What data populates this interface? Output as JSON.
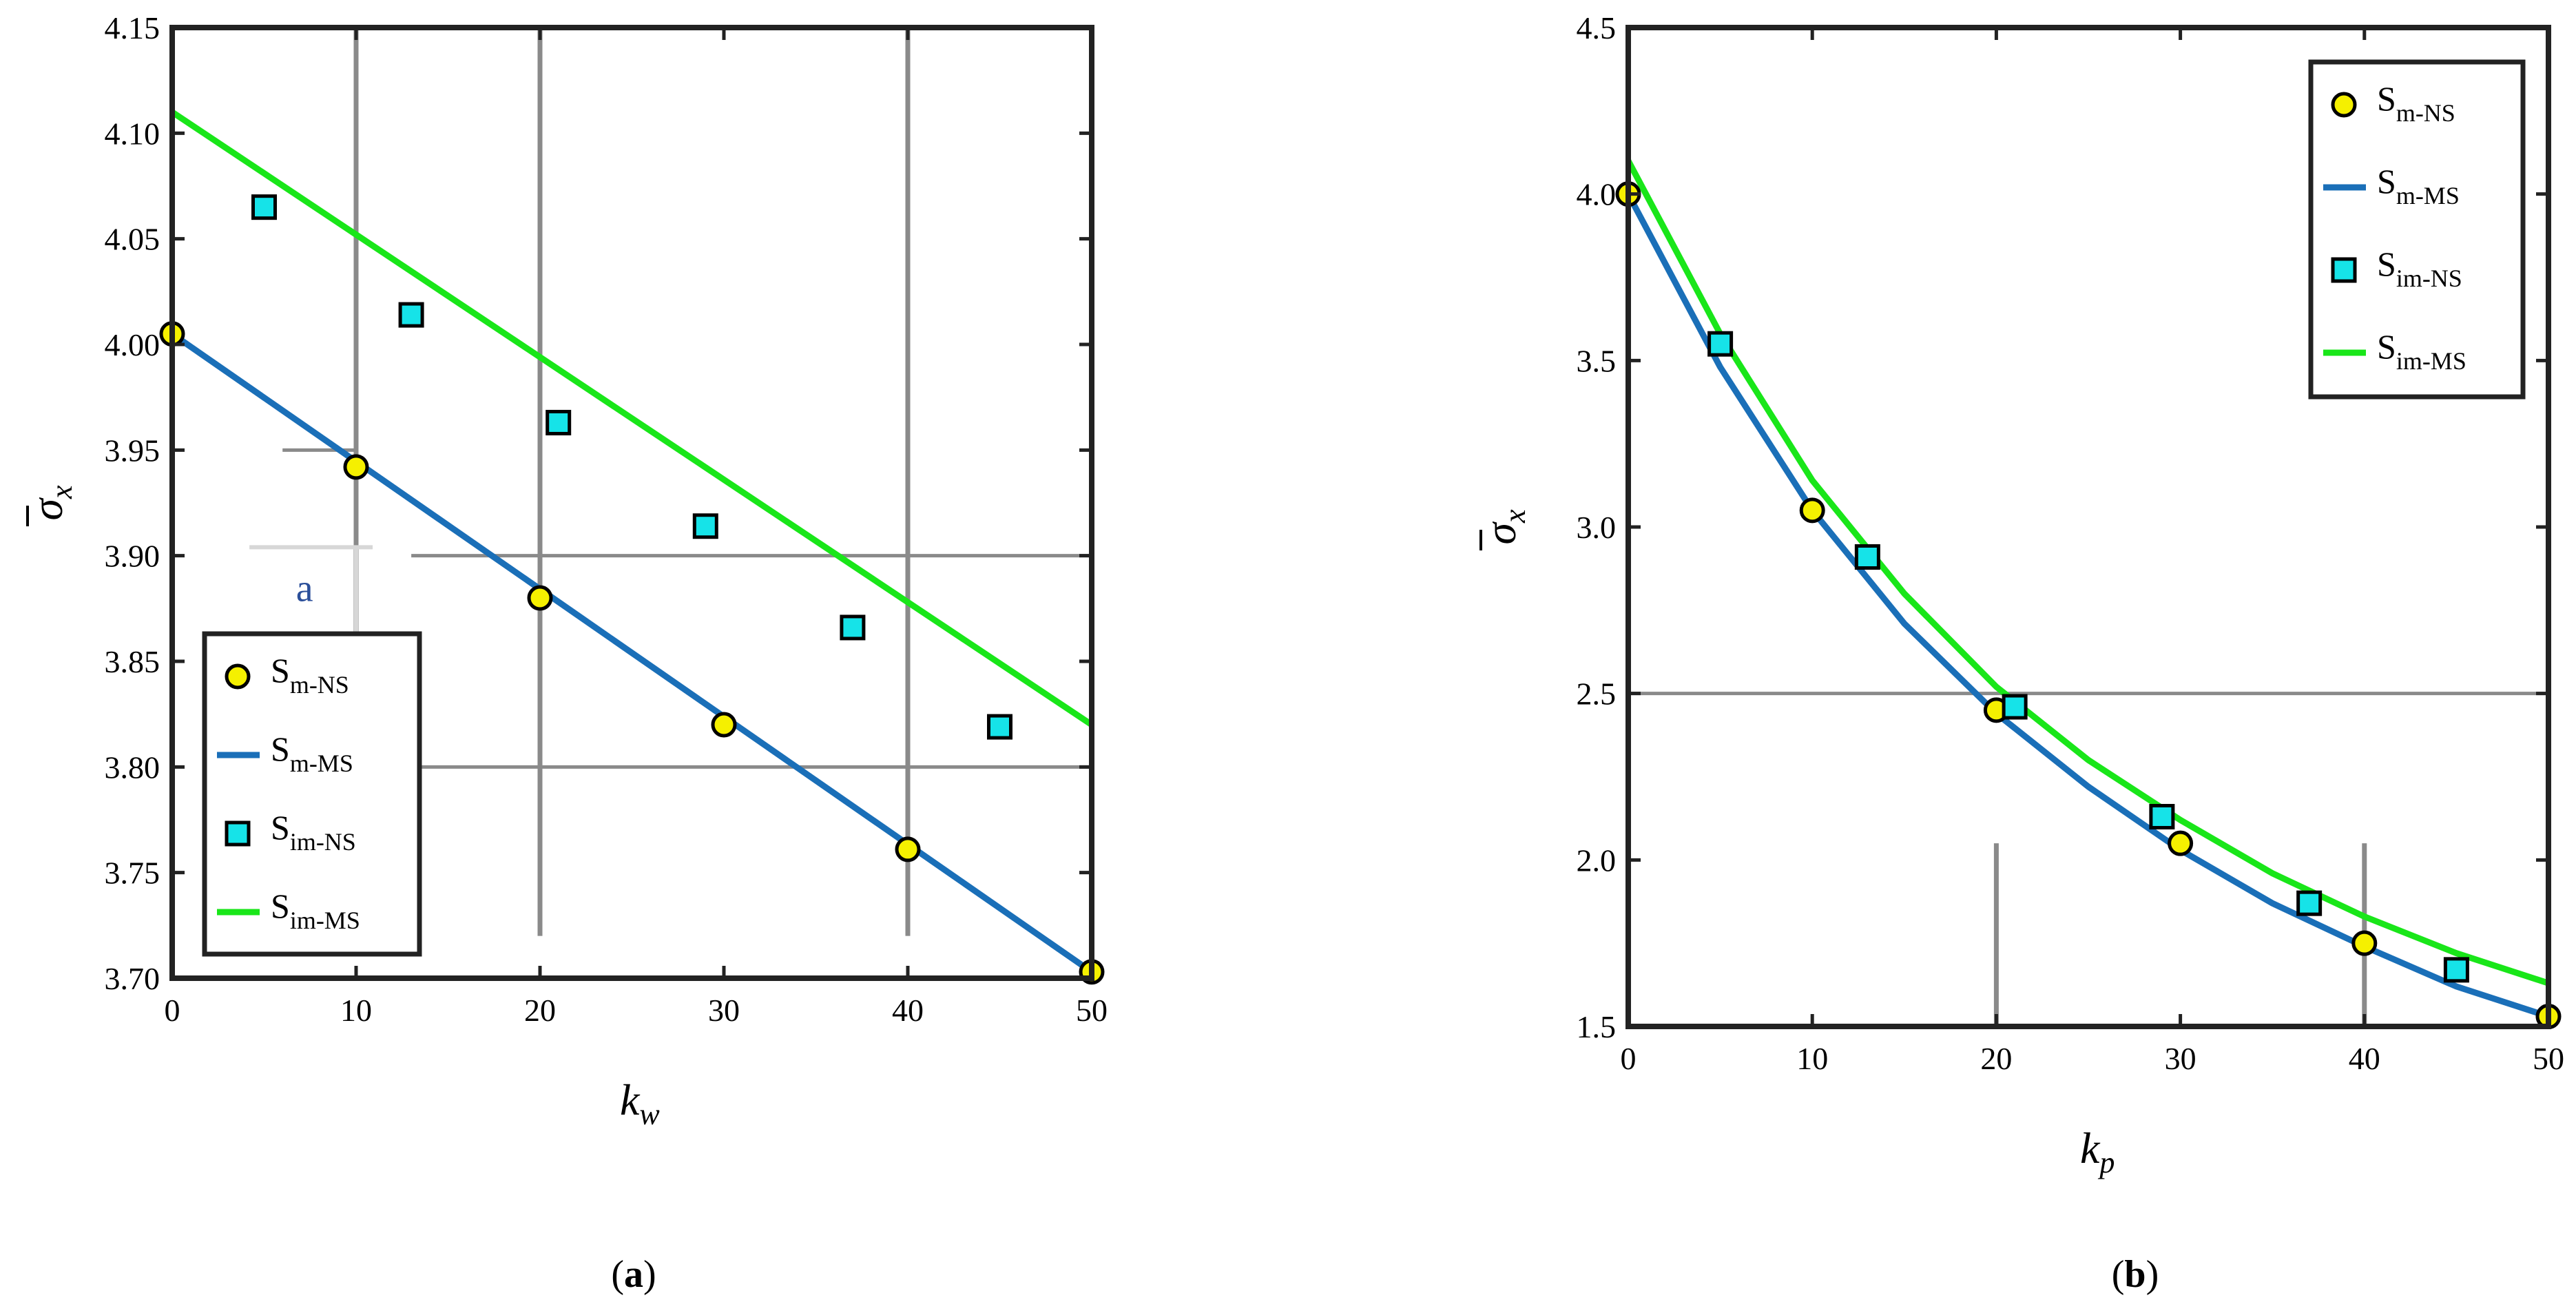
{
  "chart_data": [
    {
      "type": "line",
      "panel_label": "a",
      "xlabel": {
        "var": "k",
        "sub": "w"
      },
      "ylabel": {
        "var": "σ",
        "sub": "x"
      },
      "xlim": [
        0,
        50
      ],
      "ylim": [
        3.7,
        4.15
      ],
      "xticks": [
        0,
        10,
        20,
        30,
        40,
        50
      ],
      "xtick_labels": [
        "0",
        "10",
        "20",
        "30",
        "40",
        "50"
      ],
      "yticks": [
        3.7,
        3.75,
        3.8,
        3.85,
        3.9,
        3.95,
        4.0,
        4.05,
        4.1,
        4.15
      ],
      "ytick_labels": [
        "3.70",
        "3.75",
        "3.80",
        "3.85",
        "3.90",
        "3.95",
        "4.00",
        "4.05",
        "4.10",
        "4.15"
      ],
      "legend_position": "bottom-left",
      "annotation": "a",
      "series": [
        {
          "base": "S",
          "sub": "m-NS",
          "marker": "circle",
          "color": "#f5f000",
          "x": [
            0,
            10,
            20,
            30,
            40,
            50
          ],
          "y": [
            4.005,
            3.942,
            3.88,
            3.82,
            3.761,
            3.703
          ]
        },
        {
          "base": "S",
          "sub": "m-MS",
          "marker": "line",
          "color": "#1a6fb8",
          "x": [
            0,
            50
          ],
          "y": [
            4.005,
            3.703
          ]
        },
        {
          "base": "S",
          "sub": "im-NS",
          "marker": "square",
          "color": "#16e3e8",
          "x": [
            5,
            13,
            21,
            29,
            37,
            45
          ],
          "y": [
            4.065,
            4.014,
            3.963,
            3.914,
            3.866,
            3.819
          ]
        },
        {
          "base": "S",
          "sub": "im-MS",
          "marker": "line",
          "color": "#19e619",
          "x": [
            0,
            50
          ],
          "y": [
            4.11,
            3.82
          ]
        }
      ]
    },
    {
      "type": "line",
      "panel_label": "b",
      "xlabel": {
        "var": "k",
        "sub": "p"
      },
      "ylabel": {
        "var": "σ",
        "sub": "x"
      },
      "xlim": [
        0,
        50
      ],
      "ylim": [
        1.5,
        4.5
      ],
      "xticks": [
        0,
        10,
        20,
        30,
        40,
        50
      ],
      "xtick_labels": [
        "0",
        "10",
        "20",
        "30",
        "40",
        "50"
      ],
      "yticks": [
        1.5,
        2.0,
        2.5,
        3.0,
        3.5,
        4.0,
        4.5
      ],
      "ytick_labels": [
        "1.5",
        "2.0",
        "2.5",
        "3.0",
        "3.5",
        "4.0",
        "4.5"
      ],
      "legend_position": "top-right",
      "series": [
        {
          "base": "S",
          "sub": "m-NS",
          "marker": "circle",
          "color": "#f5f000",
          "x": [
            0,
            10,
            20,
            30,
            40,
            50
          ],
          "y": [
            4.0,
            3.05,
            2.45,
            2.05,
            1.75,
            1.53
          ]
        },
        {
          "base": "S",
          "sub": "m-MS",
          "marker": "line",
          "color": "#1a6fb8",
          "x": [
            0,
            5,
            10,
            15,
            20,
            25,
            30,
            35,
            40,
            45,
            50
          ],
          "y": [
            4.0,
            3.48,
            3.05,
            2.71,
            2.44,
            2.22,
            2.03,
            1.87,
            1.74,
            1.62,
            1.53
          ]
        },
        {
          "base": "S",
          "sub": "im-NS",
          "marker": "square",
          "color": "#16e3e8",
          "x": [
            5,
            13,
            21,
            29,
            37,
            45
          ],
          "y": [
            3.55,
            2.91,
            2.46,
            2.13,
            1.87,
            1.67
          ]
        },
        {
          "base": "S",
          "sub": "im-MS",
          "marker": "line",
          "color": "#19e619",
          "x": [
            0,
            5,
            10,
            15,
            20,
            25,
            30,
            35,
            40,
            45,
            50
          ],
          "y": [
            4.1,
            3.58,
            3.14,
            2.8,
            2.52,
            2.3,
            2.12,
            1.96,
            1.83,
            1.72,
            1.63
          ]
        }
      ]
    }
  ]
}
